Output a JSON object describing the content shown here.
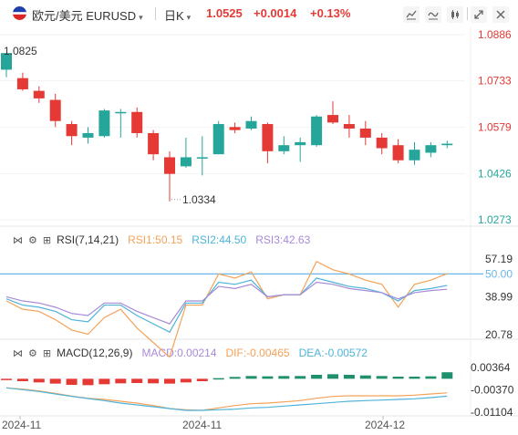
{
  "header": {
    "symbol_label": "欧元/美元 EURUSD",
    "timeframe": "日K",
    "price": "1.0525",
    "change": "+0.0014",
    "change_pct": "+0.13%"
  },
  "colors": {
    "up": "#26a69a",
    "down": "#e53935",
    "rsi1": "#f4a259",
    "rsi2": "#4fb3d9",
    "rsi3": "#a88ad8",
    "ref_line": "#6cb6e8",
    "macd_pos": "#1f8f6e",
    "macd_neg": "#e53935"
  },
  "chart_data": [
    {
      "type": "candlestick",
      "title": "EURUSD 日K",
      "y_ticks": [
        "1.0886",
        "1.0733",
        "1.0579",
        "1.0426",
        "1.0273"
      ],
      "ylim": [
        1.0273,
        1.0886
      ],
      "annotations": {
        "high": "1.0825",
        "low": "1.0334"
      },
      "candles": [
        {
          "o": 1.077,
          "h": 1.0825,
          "l": 1.0745,
          "c": 1.0825
        },
        {
          "o": 1.0742,
          "h": 1.076,
          "l": 1.07,
          "c": 1.0705
        },
        {
          "o": 1.07,
          "h": 1.0715,
          "l": 1.066,
          "c": 1.0675
        },
        {
          "o": 1.067,
          "h": 1.069,
          "l": 1.058,
          "c": 1.06
        },
        {
          "o": 1.059,
          "h": 1.06,
          "l": 1.052,
          "c": 1.055
        },
        {
          "o": 1.0545,
          "h": 1.058,
          "l": 1.0525,
          "c": 1.056
        },
        {
          "o": 1.055,
          "h": 1.064,
          "l": 1.0545,
          "c": 1.0635
        },
        {
          "o": 1.063,
          "h": 1.064,
          "l": 1.0545,
          "c": 1.063
        },
        {
          "o": 1.063,
          "h": 1.0645,
          "l": 1.0545,
          "c": 1.056
        },
        {
          "o": 1.056,
          "h": 1.057,
          "l": 1.047,
          "c": 1.049
        },
        {
          "o": 1.048,
          "h": 1.05,
          "l": 1.0334,
          "c": 1.0425
        },
        {
          "o": 1.045,
          "h": 1.0545,
          "l": 1.0445,
          "c": 1.048
        },
        {
          "o": 1.048,
          "h": 1.055,
          "l": 1.042,
          "c": 1.048
        },
        {
          "o": 1.049,
          "h": 1.06,
          "l": 1.049,
          "c": 1.059
        },
        {
          "o": 1.058,
          "h": 1.0595,
          "l": 1.056,
          "c": 1.057
        },
        {
          "o": 1.0575,
          "h": 1.0615,
          "l": 1.057,
          "c": 1.06
        },
        {
          "o": 1.059,
          "h": 1.0595,
          "l": 1.046,
          "c": 1.05
        },
        {
          "o": 1.05,
          "h": 1.055,
          "l": 1.049,
          "c": 1.052
        },
        {
          "o": 1.052,
          "h": 1.0545,
          "l": 1.0465,
          "c": 1.053
        },
        {
          "o": 1.052,
          "h": 1.062,
          "l": 1.0515,
          "c": 1.0615
        },
        {
          "o": 1.062,
          "h": 1.0665,
          "l": 1.059,
          "c": 1.0595
        },
        {
          "o": 1.059,
          "h": 1.062,
          "l": 1.0545,
          "c": 1.0575
        },
        {
          "o": 1.0575,
          "h": 1.06,
          "l": 1.052,
          "c": 1.0545
        },
        {
          "o": 1.0545,
          "h": 1.056,
          "l": 1.049,
          "c": 1.051
        },
        {
          "o": 1.052,
          "h": 1.054,
          "l": 1.046,
          "c": 1.047
        },
        {
          "o": 1.047,
          "h": 1.053,
          "l": 1.0455,
          "c": 1.0505
        },
        {
          "o": 1.0495,
          "h": 1.053,
          "l": 1.048,
          "c": 1.052
        },
        {
          "o": 1.052,
          "h": 1.0535,
          "l": 1.051,
          "c": 1.0525
        }
      ]
    },
    {
      "type": "line",
      "title": "RSI(7,14,21)",
      "legend": [
        "RSI1:50.15",
        "RSI2:44.50",
        "RSI3:42.63"
      ],
      "y_ticks": [
        "57.19",
        "50.00",
        "38.99",
        "20.78"
      ],
      "ylim": [
        20.78,
        57.19
      ],
      "reference_line": 50.0,
      "series": [
        {
          "name": "RSI1",
          "values": [
            37,
            33,
            32,
            28,
            23,
            21,
            29,
            33,
            24,
            17,
            10,
            35,
            35,
            50,
            48,
            51,
            38,
            40,
            40,
            56,
            52,
            50,
            47,
            45,
            34,
            45,
            47,
            50.15
          ]
        },
        {
          "name": "RSI2",
          "values": [
            38,
            35,
            34,
            32,
            28,
            27,
            35,
            35,
            30,
            26,
            22,
            36,
            36,
            46,
            45,
            47,
            39,
            40,
            40,
            48,
            46,
            44,
            43,
            41,
            37,
            42,
            43,
            44.5
          ]
        },
        {
          "name": "RSI3",
          "values": [
            39,
            37,
            36,
            34,
            31,
            30,
            36,
            36,
            32,
            29,
            26,
            37,
            37,
            44,
            43,
            45,
            39,
            40,
            40,
            46,
            45,
            43,
            42,
            41,
            38,
            41,
            42,
            42.63
          ]
        }
      ]
    },
    {
      "type": "bar",
      "title": "MACD(12,26,9)",
      "legend": [
        "MACD:0.00214",
        "DIF:-0.00465",
        "DEA:-0.00572"
      ],
      "y_ticks": [
        "0.00364",
        "-0.00370",
        "-0.01104"
      ],
      "ylim": [
        -0.011,
        0.004
      ],
      "x_labels": [
        "2024-11",
        "2024-11",
        "2024-12"
      ],
      "histogram": [
        -0.0004,
        -0.0008,
        -0.0012,
        -0.0016,
        -0.002,
        -0.0021,
        -0.0018,
        -0.0015,
        -0.0014,
        -0.0015,
        -0.0016,
        -0.0012,
        -0.0008,
        0.0002,
        0.0006,
        0.0009,
        0.0008,
        0.0009,
        0.0009,
        0.0013,
        0.0015,
        0.0013,
        0.0011,
        0.0009,
        0.0007,
        0.0007,
        0.0008,
        0.00214
      ],
      "series": [
        {
          "name": "DIF",
          "values": [
            -0.003,
            -0.0034,
            -0.004,
            -0.0048,
            -0.0057,
            -0.0064,
            -0.0068,
            -0.0074,
            -0.008,
            -0.0088,
            -0.0098,
            -0.0102,
            -0.0104,
            -0.0096,
            -0.0088,
            -0.0082,
            -0.008,
            -0.0076,
            -0.0072,
            -0.0064,
            -0.0058,
            -0.0056,
            -0.0056,
            -0.0056,
            -0.0056,
            -0.0054,
            -0.005,
            -0.00465
          ]
        },
        {
          "name": "DEA",
          "values": [
            -0.003,
            -0.0036,
            -0.0042,
            -0.005,
            -0.0058,
            -0.0065,
            -0.0072,
            -0.008,
            -0.0086,
            -0.0092,
            -0.0098,
            -0.0104,
            -0.0104,
            -0.0102,
            -0.01,
            -0.0096,
            -0.0094,
            -0.009,
            -0.0086,
            -0.0082,
            -0.0078,
            -0.0074,
            -0.0072,
            -0.007,
            -0.0068,
            -0.0066,
            -0.0062,
            -0.00572
          ]
        }
      ]
    }
  ]
}
